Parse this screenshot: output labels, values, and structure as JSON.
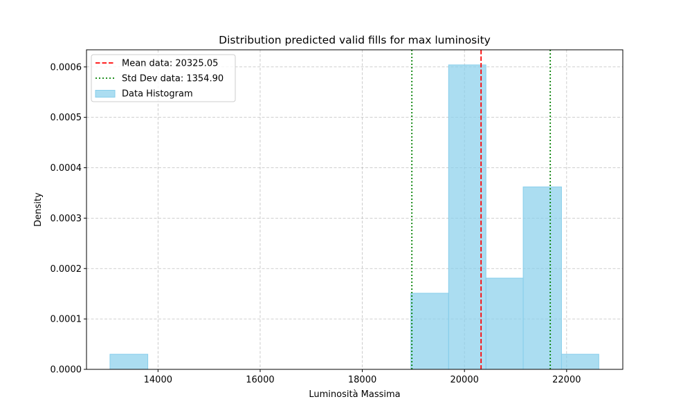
{
  "chart_data": {
    "type": "bar",
    "title": "Distribution predicted valid fills for max luminosity",
    "xlabel": "Luminosità Massima",
    "ylabel": "Density",
    "xlim": [
      12600,
      23100
    ],
    "ylim": [
      0,
      0.000634
    ],
    "xticks": [
      14000,
      16000,
      18000,
      20000,
      22000
    ],
    "xtick_labels": [
      "14000",
      "16000",
      "18000",
      "20000",
      "22000"
    ],
    "yticks": [
      0,
      0.0001,
      0.0002,
      0.0003,
      0.0004,
      0.0005,
      0.0006
    ],
    "ytick_labels": [
      "0.0000",
      "0.0001",
      "0.0002",
      "0.0003",
      "0.0004",
      "0.0005",
      "0.0006"
    ],
    "grid": true,
    "legend_position": "top-left",
    "bins": [
      {
        "x0": 13060,
        "x1": 13800,
        "density": 3e-05
      },
      {
        "x0": 18950,
        "x1": 19690,
        "density": 0.000151
      },
      {
        "x0": 19690,
        "x1": 20420,
        "density": 0.000604
      },
      {
        "x0": 20420,
        "x1": 21150,
        "density": 0.000181
      },
      {
        "x0": 21150,
        "x1": 21900,
        "density": 0.000362
      },
      {
        "x0": 21900,
        "x1": 22630,
        "density": 3e-05
      }
    ],
    "mean": 20325.05,
    "std": 1354.9,
    "std_lines": [
      18970.15,
      21679.95
    ],
    "legend": [
      {
        "label": "Mean data: 20325.05",
        "style": "dashed",
        "color": "#ff0000"
      },
      {
        "label": "Std Dev data: 1354.90",
        "style": "dotted",
        "color": "#008000"
      },
      {
        "label": "Data Histogram",
        "style": "patch",
        "color": "#87ceeb"
      }
    ],
    "colors": {
      "bar_fill": "#87ceeb",
      "bar_edge": "#87ceeb",
      "mean_line": "#ff0000",
      "std_line": "#008000",
      "grid": "#b0b0b0"
    }
  }
}
